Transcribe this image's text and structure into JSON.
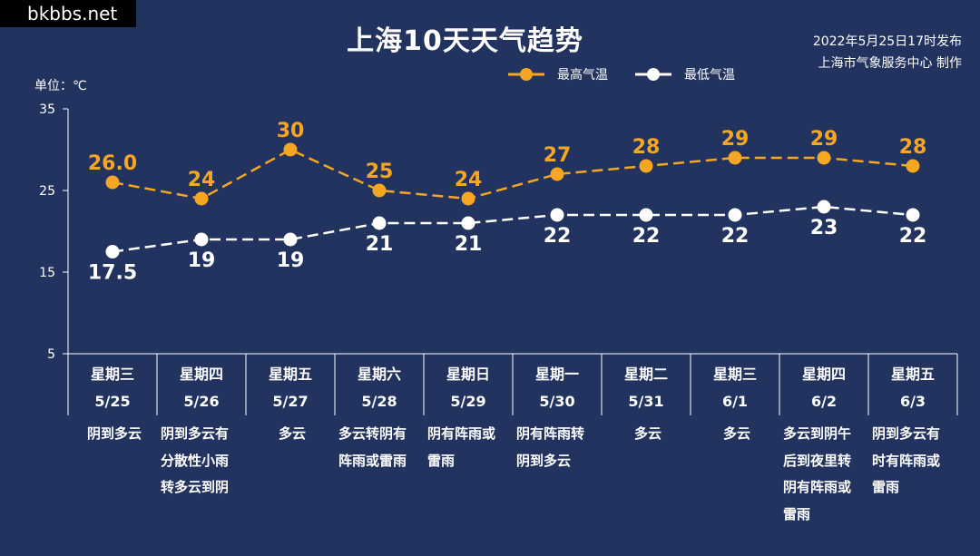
{
  "watermark": "bkbbs.net",
  "title": "上海10天天气趋势",
  "issued": {
    "line1": "2022年5月25日17时发布",
    "line2": "上海市气象服务中心 制作"
  },
  "unit_label": "单位：℃",
  "colors": {
    "background": "#22335f",
    "high": "#f5a623",
    "low": "#ffffff",
    "text": "#ffffff"
  },
  "chart_data": {
    "type": "line",
    "ylim": [
      5,
      35
    ],
    "yticks": [
      5,
      15,
      25,
      35
    ],
    "categories": [
      "5/25",
      "5/26",
      "5/27",
      "5/28",
      "5/29",
      "5/30",
      "5/31",
      "6/1",
      "6/2",
      "6/3"
    ],
    "weekdays": [
      "星期三",
      "星期四",
      "星期五",
      "星期六",
      "星期日",
      "星期一",
      "星期二",
      "星期三",
      "星期四",
      "星期五"
    ],
    "series": [
      {
        "name": "最高气温",
        "values": [
          26.0,
          24,
          30,
          25,
          24,
          27,
          28,
          29,
          29,
          28
        ],
        "labels": [
          "26.0",
          "24",
          "30",
          "25",
          "24",
          "27",
          "28",
          "29",
          "29",
          "28"
        ]
      },
      {
        "name": "最低气温",
        "values": [
          17.5,
          19,
          19,
          21,
          21,
          22,
          22,
          22,
          23,
          22
        ],
        "labels": [
          "17.5",
          "19",
          "19",
          "21",
          "21",
          "22",
          "22",
          "22",
          "23",
          "22"
        ]
      }
    ],
    "weather": [
      "阴到多云",
      "阴到多云有分散性小雨转多云到阴",
      "多云",
      "多云转阴有阵雨或雷雨",
      "阴有阵雨或雷雨",
      "阴有阵雨转阴到多云",
      "多云",
      "多云",
      "多云到阴午后到夜里转阴有阵雨或雷雨",
      "阴到多云有时有阵雨或雷雨"
    ],
    "weather_lines": [
      [
        "阴到多云"
      ],
      [
        "阴到多云有",
        "分散性小雨",
        "转多云到阴"
      ],
      [
        "多云"
      ],
      [
        "多云转阴有",
        "阵雨或雷雨"
      ],
      [
        "阴有阵雨或",
        "雷雨"
      ],
      [
        "阴有阵雨转",
        "阴到多云"
      ],
      [
        "多云"
      ],
      [
        "多云"
      ],
      [
        "多云到阴午",
        "后到夜里转",
        "阴有阵雨或",
        "雷雨"
      ],
      [
        "阴到多云有",
        "时有阵雨或",
        "雷雨"
      ]
    ]
  }
}
